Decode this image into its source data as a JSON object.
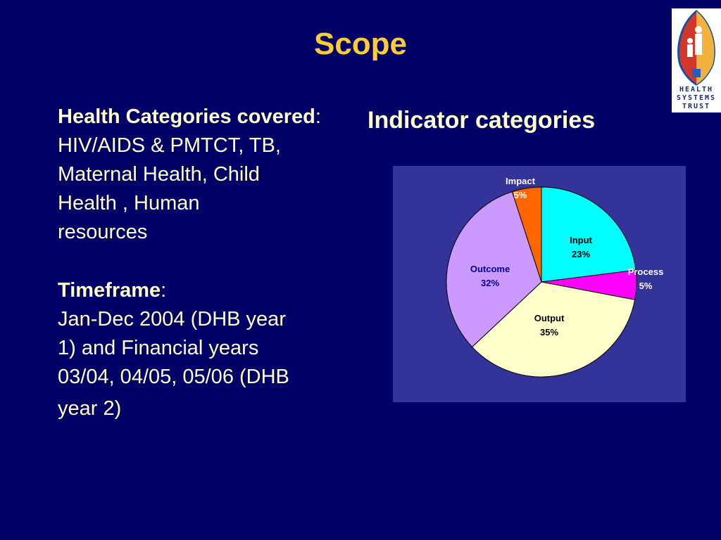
{
  "slide": {
    "title": "Scope",
    "background_color": "#000066",
    "title_color": "#ffcc33"
  },
  "left_column": {
    "section1": {
      "heading": "Health Categories covered",
      "colon": ":",
      "lines": [
        "HIV/AIDS & PMTCT, TB,",
        "Maternal Health, Child",
        "Health , Human",
        "resources"
      ]
    },
    "section2": {
      "heading": "Timeframe",
      "colon": ":",
      "lines": [
        "Jan-Dec 2004 (DHB year",
        "1) and Financial years",
        "03/04, 04/05, 05/06 (DHB",
        "year 2)"
      ]
    }
  },
  "logo": {
    "icon": "health-systems-trust-shield-logo",
    "text_lines": [
      "HEALTH",
      "SYSTEMS",
      "TRUST"
    ]
  },
  "chart_data": {
    "type": "pie",
    "title": "Indicator categories",
    "plot_background": "#333399",
    "start_angle": "12 o'clock, clockwise",
    "categories": [
      "Input",
      "Process",
      "Output",
      "Outcome",
      "Impact"
    ],
    "values": [
      23,
      5,
      35,
      32,
      5
    ],
    "labels": [
      "23%",
      "5%",
      "35%",
      "32%",
      "5%"
    ],
    "colors": [
      "#00ffff",
      "#ff00ff",
      "#ffffcc",
      "#cc99ff",
      "#ff6600"
    ],
    "legend": "none (data labels on slices)"
  }
}
